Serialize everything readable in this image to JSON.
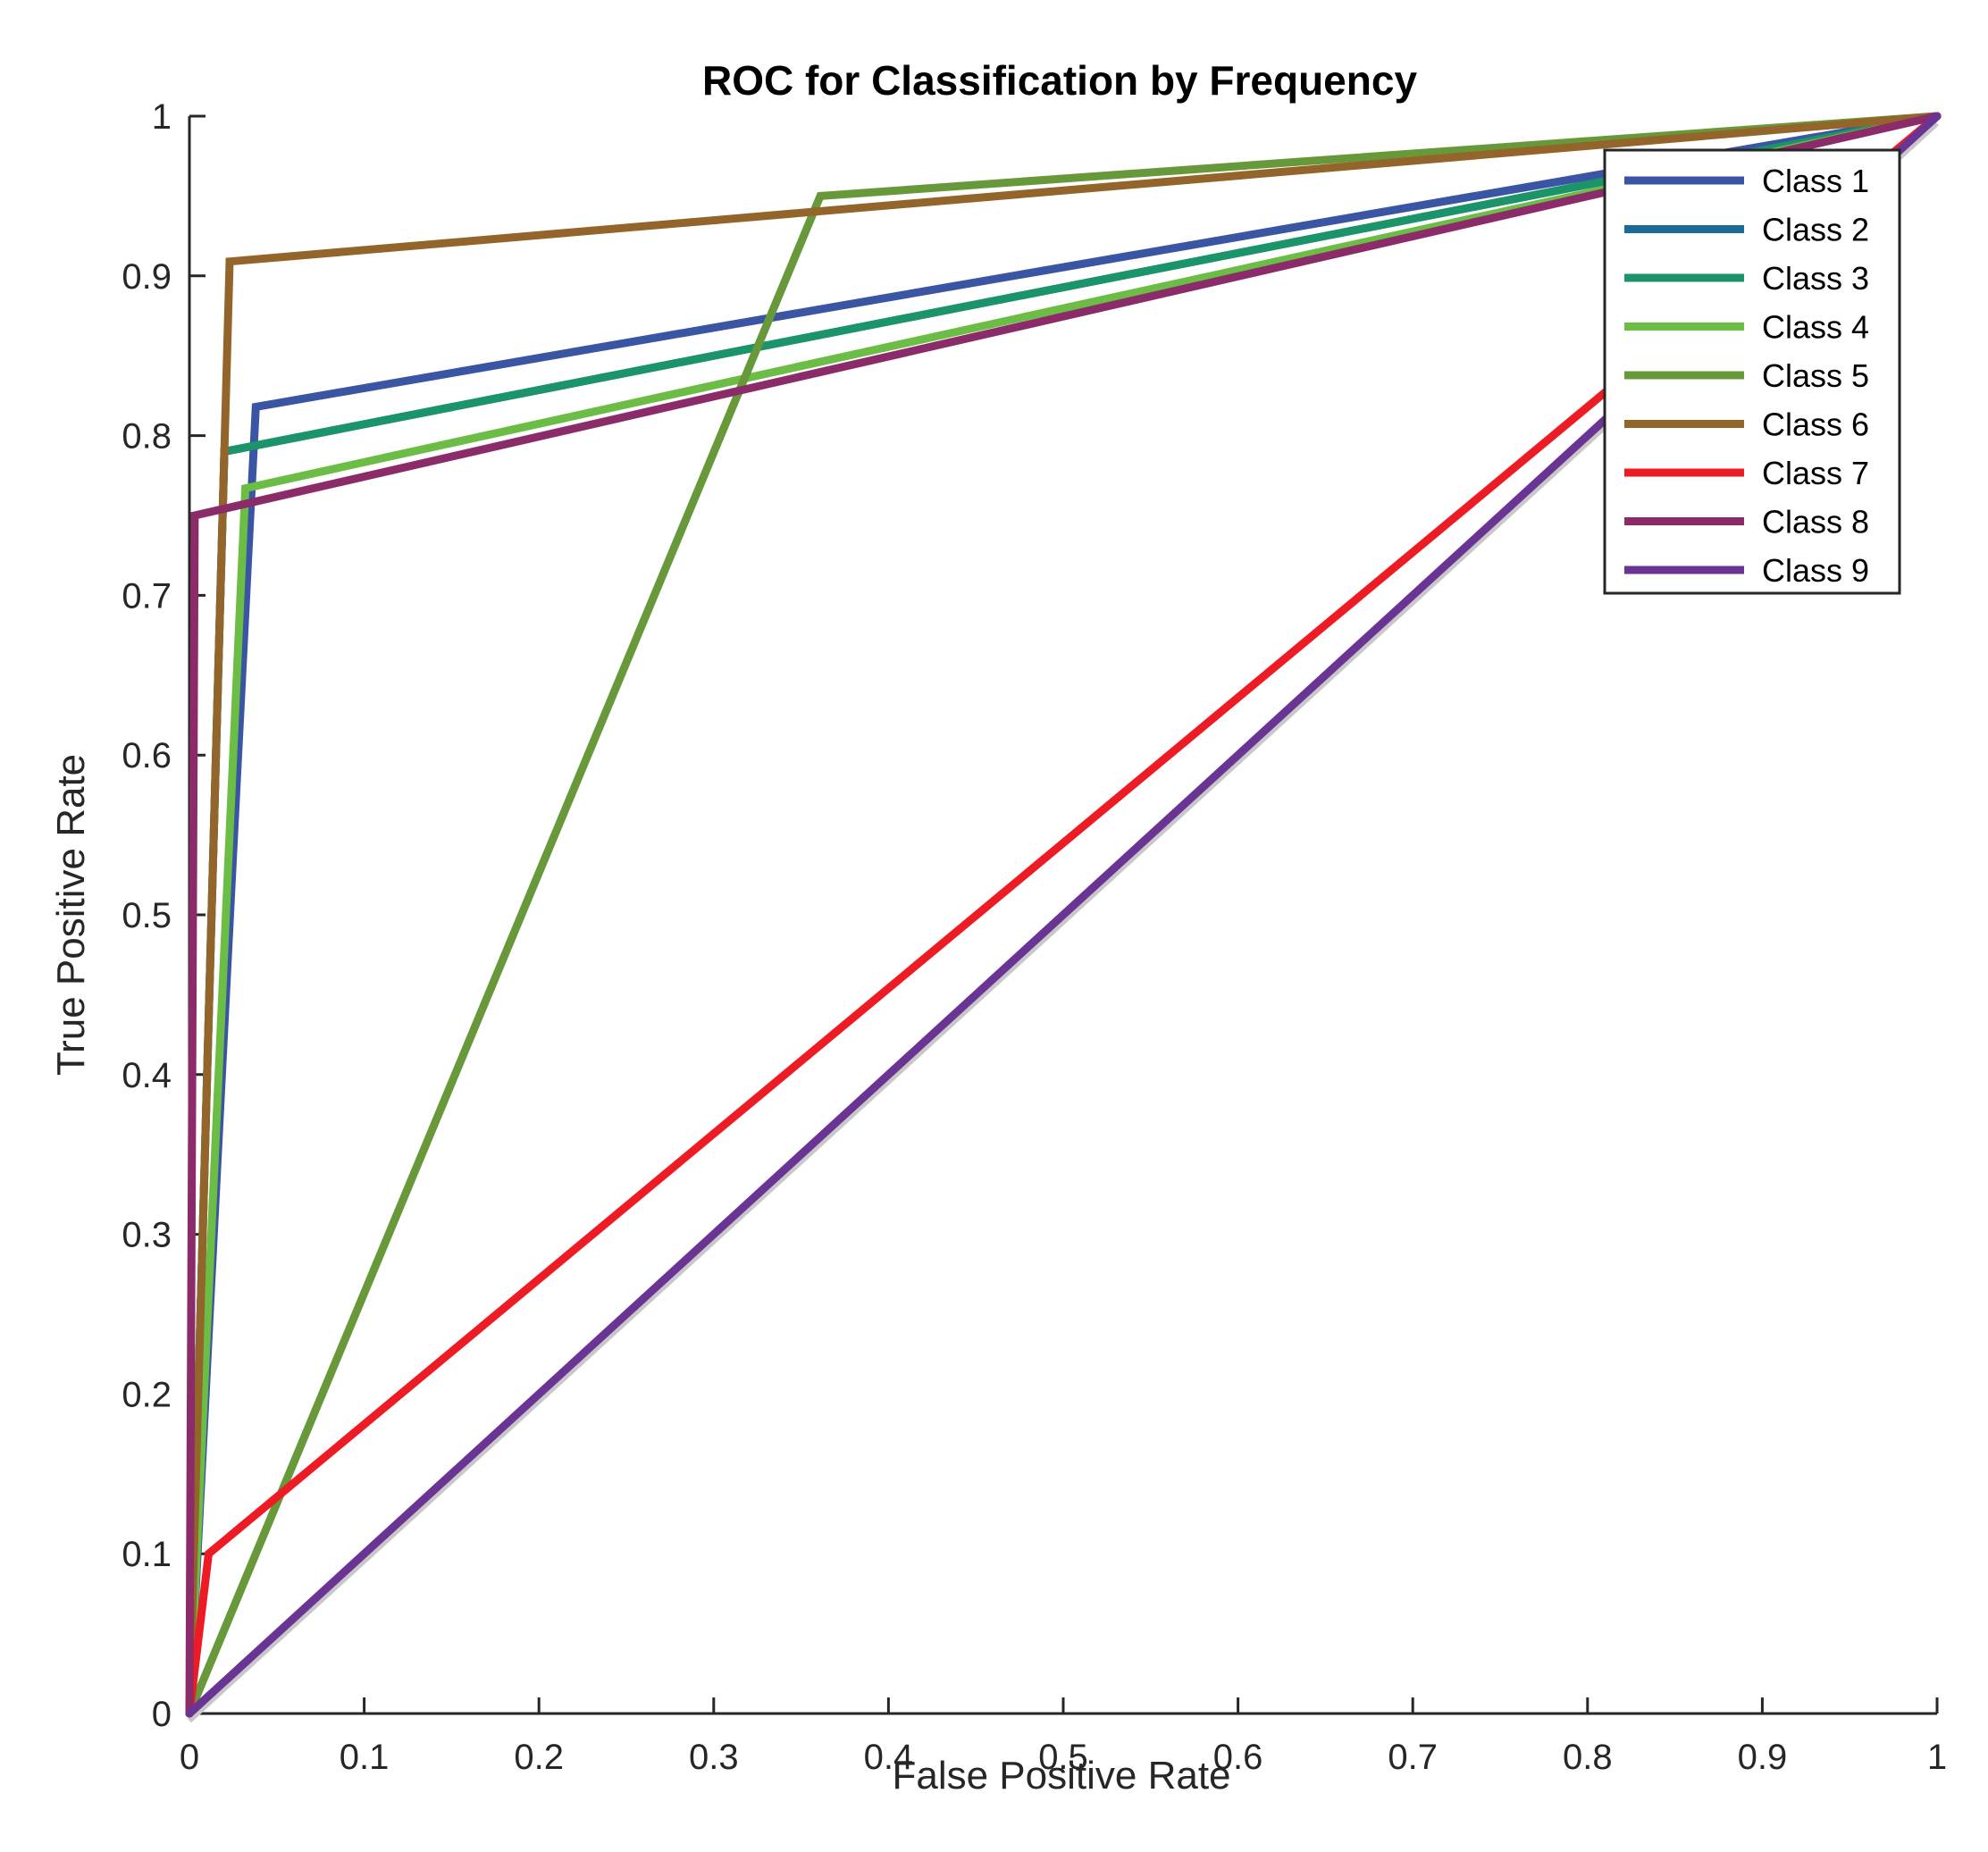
{
  "chart_data": {
    "type": "line",
    "title": "ROC for Classification by Frequency",
    "xlabel": "False Positive Rate",
    "ylabel": "True Positive Rate",
    "xlim": [
      0,
      1
    ],
    "ylim": [
      0,
      1
    ],
    "xticks": [
      0,
      0.1,
      0.2,
      0.3,
      0.4,
      0.5,
      0.6,
      0.7,
      0.8,
      0.9,
      1
    ],
    "xtick_labels": [
      "0",
      "0.1",
      "0.2",
      "0.3",
      "0.4",
      "0.5",
      "0.6",
      "0.7",
      "0.8",
      "0.9",
      "1"
    ],
    "yticks": [
      0,
      0.1,
      0.2,
      0.3,
      0.4,
      0.5,
      0.6,
      0.7,
      0.8,
      0.9,
      1
    ],
    "ytick_labels": [
      "0",
      "0.1",
      "0.2",
      "0.3",
      "0.4",
      "0.5",
      "0.6",
      "0.7",
      "0.8",
      "0.9",
      "1"
    ],
    "grid": false,
    "legend_position": "top-right",
    "reference_line": {
      "x": [
        0,
        1
      ],
      "y": [
        0,
        1
      ],
      "color": "#c8c8c8"
    },
    "series": [
      {
        "name": "Class 1",
        "color": "#3a55a4",
        "x": [
          0,
          0.038,
          1
        ],
        "y": [
          0,
          0.818,
          1
        ]
      },
      {
        "name": "Class 2",
        "color": "#1a6c96",
        "x": [
          0,
          0.02,
          1
        ],
        "y": [
          0,
          0.79,
          1
        ]
      },
      {
        "name": "Class 3",
        "color": "#1a9468",
        "x": [
          0,
          0.02,
          1
        ],
        "y": [
          0,
          0.79,
          1
        ]
      },
      {
        "name": "Class 4",
        "color": "#6cbd45",
        "x": [
          0,
          0.032,
          1
        ],
        "y": [
          0,
          0.767,
          1
        ]
      },
      {
        "name": "Class 5",
        "color": "#67993a",
        "x": [
          0,
          0.361,
          1
        ],
        "y": [
          0,
          0.95,
          1
        ]
      },
      {
        "name": "Class 6",
        "color": "#94652a",
        "x": [
          0,
          0.023,
          1
        ],
        "y": [
          0,
          0.909,
          1
        ]
      },
      {
        "name": "Class 7",
        "color": "#ed1c24",
        "x": [
          0,
          0.011,
          1
        ],
        "y": [
          0,
          0.1,
          1
        ]
      },
      {
        "name": "Class 8",
        "color": "#8c2b69",
        "x": [
          0,
          0.003,
          1
        ],
        "y": [
          0,
          0.75,
          1
        ]
      },
      {
        "name": "Class 9",
        "color": "#6a3495",
        "x": [
          0,
          0.99,
          1
        ],
        "y": [
          0,
          0.99,
          1
        ]
      }
    ]
  }
}
